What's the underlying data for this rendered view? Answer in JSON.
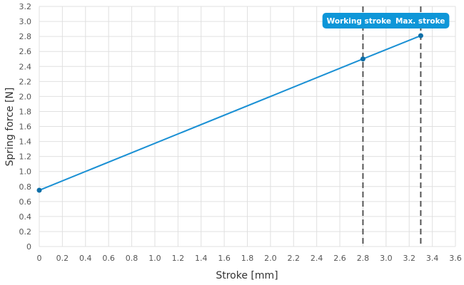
{
  "chart_data": {
    "type": "line",
    "xlabel": "Stroke [mm]",
    "ylabel": "Spring force [N]",
    "xlim": [
      0,
      3.6
    ],
    "ylim": [
      0,
      3.2
    ],
    "xticks": [
      0,
      0.2,
      0.4,
      0.6,
      0.8,
      1.0,
      1.2,
      1.4,
      1.6,
      1.8,
      2.0,
      2.2,
      2.4,
      2.6,
      2.8,
      3.0,
      3.2,
      3.4,
      3.6
    ],
    "yticks": [
      0,
      0.2,
      0.4,
      0.6,
      0.8,
      1.0,
      1.2,
      1.4,
      1.6,
      1.8,
      2.0,
      2.2,
      2.4,
      2.6,
      2.8,
      3.0,
      3.2
    ],
    "grid": true,
    "series": [
      {
        "x": [
          0,
          2.8,
          3.3
        ],
        "y": [
          0.75,
          2.5,
          2.81
        ]
      }
    ],
    "markers": [
      {
        "label": "Working stroke",
        "x": 2.8
      },
      {
        "label": "Max. stroke",
        "x": 3.3
      }
    ],
    "line_color": "#1a90d4",
    "marker_color": "#0e6fa8",
    "tag_color": "#0e96d8",
    "guide_color": "#555555"
  }
}
